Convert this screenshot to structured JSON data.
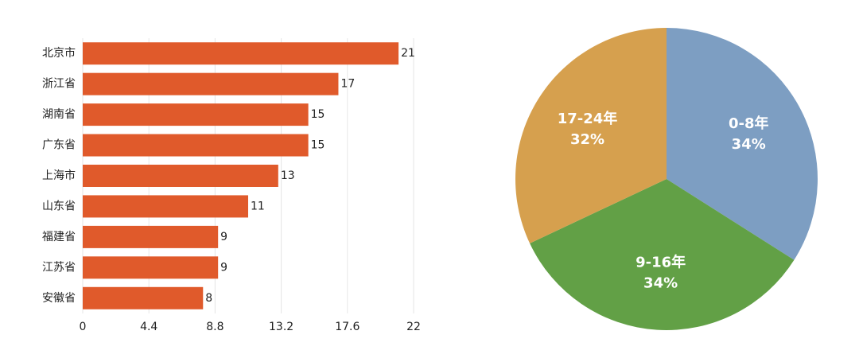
{
  "chart_data": [
    {
      "type": "hbar",
      "categories": [
        "北京市",
        "浙江省",
        "湖南省",
        "广东省",
        "上海市",
        "山东省",
        "福建省",
        "江苏省",
        "安徽省"
      ],
      "values": [
        21,
        17,
        15,
        15,
        13,
        11,
        9,
        9,
        8
      ],
      "color": "#e05a2b",
      "xlim": [
        0,
        22
      ],
      "xticks": [
        0,
        4.4,
        8.8,
        13.2,
        17.6,
        22
      ],
      "grid": true
    },
    {
      "type": "pie",
      "categories": [
        "0-8年",
        "9-16年",
        "17-24年"
      ],
      "values": [
        34,
        34,
        32
      ],
      "value_labels": [
        "34%",
        "34%",
        "32%"
      ],
      "colors": [
        "#7d9ec2",
        "#62a046",
        "#d6a04e"
      ]
    }
  ]
}
